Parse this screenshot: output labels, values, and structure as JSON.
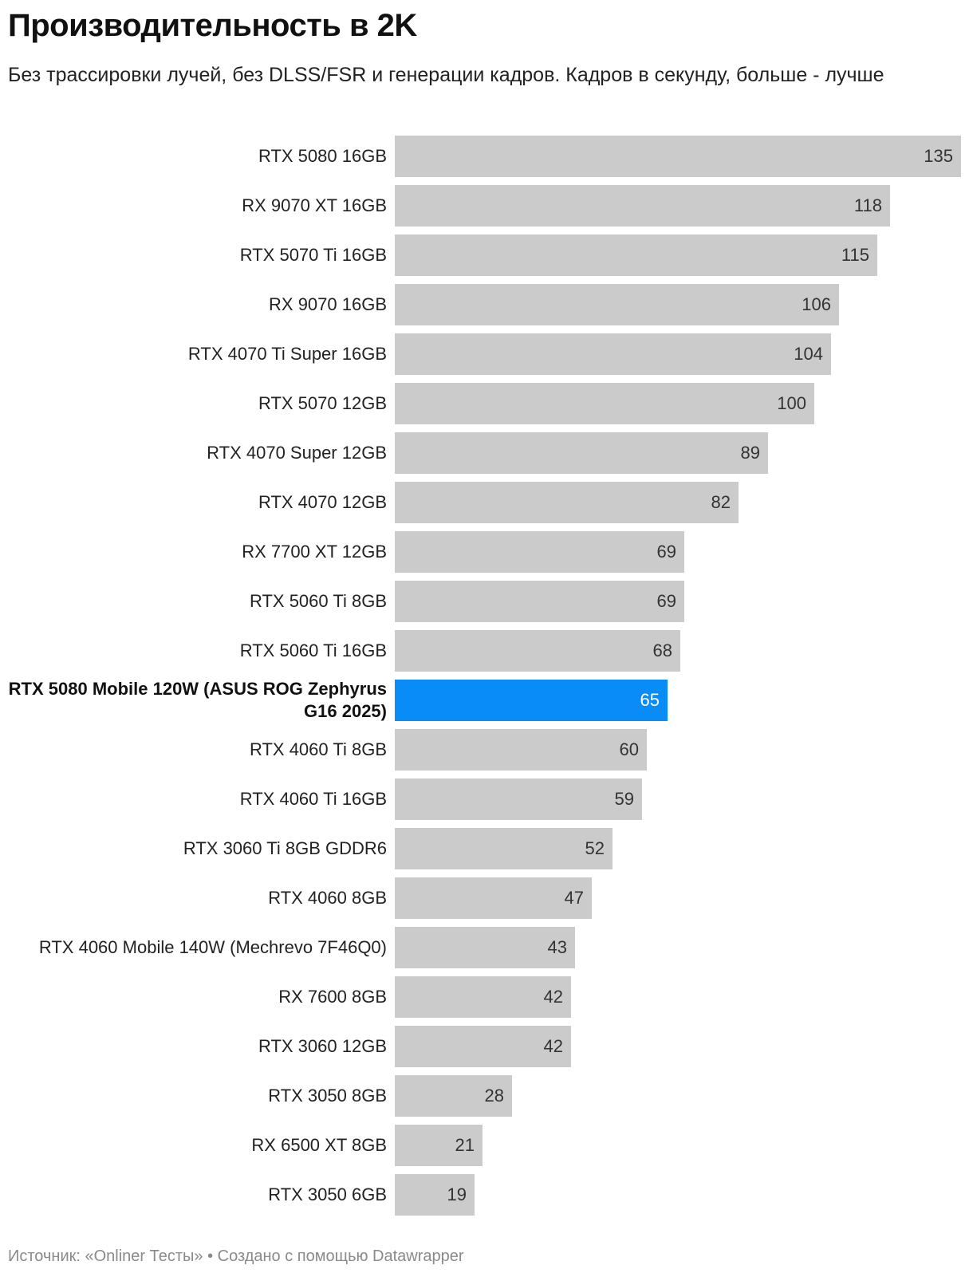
{
  "chart_data": {
    "type": "bar",
    "orientation": "horizontal",
    "title": "Производительность в 2K",
    "subtitle": "Без трассировки лучей, без DLSS/FSR и генерации кадров. Кадров в секунду, больше - лучше",
    "categories": [
      "RTX 5080 16GB",
      "RX 9070 XT 16GB",
      "RTX 5070 Ti 16GB",
      "RX 9070 16GB",
      "RTX 4070 Ti Super 16GB",
      "RTX 5070 12GB",
      "RTX 4070 Super 12GB",
      "RTX 4070 12GB",
      "RX 7700 XT 12GB",
      "RTX 5060 Ti 8GB",
      "RTX 5060 Ti 16GB",
      "RTX 5080 Mobile 120W (ASUS ROG Zephyrus G16 2025)",
      "RTX 4060 Ti 8GB",
      "RTX 4060 Ti 16GB",
      "RTX 3060 Ti 8GB GDDR6",
      "RTX 4060 8GB",
      "RTX 4060 Mobile 140W (Mechrevo 7F46Q0)",
      "RX 7600 8GB",
      "RTX 3060 12GB",
      "RTX 3050 8GB",
      "RX 6500 XT 8GB",
      "RTX 3050 6GB"
    ],
    "values": [
      135,
      118,
      115,
      106,
      104,
      100,
      89,
      82,
      69,
      69,
      68,
      65,
      60,
      59,
      52,
      47,
      43,
      42,
      42,
      28,
      21,
      19
    ],
    "highlight_index": 11,
    "xlim": [
      0,
      135
    ],
    "grid": false,
    "colors": {
      "bar": "#cbcbcb",
      "highlight": "#0a8cf8",
      "value_text": "#333333",
      "highlight_value_text": "#ffffff"
    }
  },
  "footer": "Источник: «Onliner Тесты» • Создано с помощью Datawrapper"
}
